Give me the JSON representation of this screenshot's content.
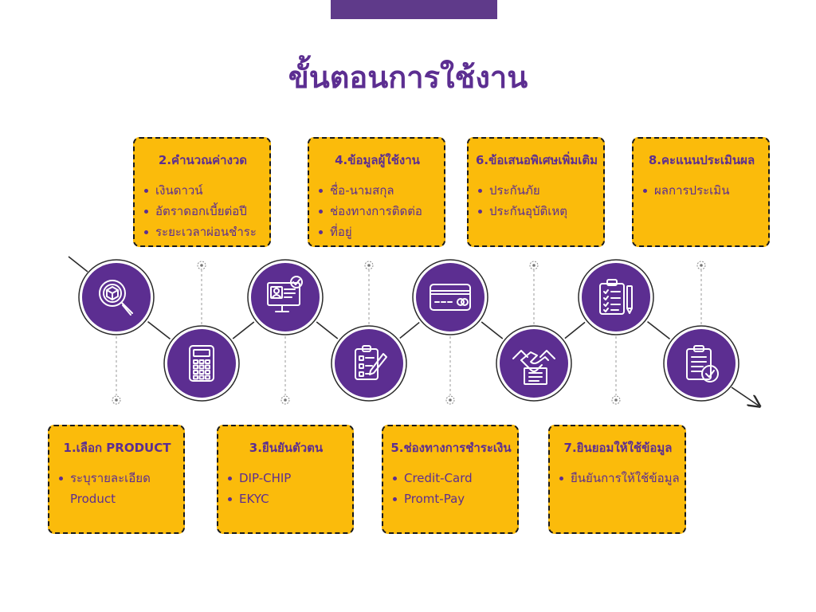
{
  "title": "ขั้นตอนการใช้งาน",
  "colors": {
    "purple": "#5c2e91",
    "yellow": "#fbbb0b",
    "line": "#2b2b2b",
    "dotted": "#9a9a9a"
  },
  "steps": [
    {
      "title": "1.เลือก PRODUCT",
      "items": [
        "ระบุรายละเอียด Product"
      ],
      "icon": "box-search-icon"
    },
    {
      "title": "2.คำนวณค่างวด",
      "items": [
        "เงินดาวน์",
        "อัตราดอกเบี้ยต่อปี",
        "ระยะเวลาผ่อนชำระ"
      ],
      "icon": "calculator-icon"
    },
    {
      "title": "3.ยืนยันตัวตน",
      "items": [
        "DIP-CHIP",
        "EKYC"
      ],
      "icon": "id-verify-monitor-icon"
    },
    {
      "title": "4.ข้อมูลผู้ใช้งาน",
      "items": [
        "ชื่อ-นามสกุล",
        "ช่องทางการติดต่อ",
        "ที่อยู่"
      ],
      "icon": "clipboard-pen-icon"
    },
    {
      "title": "5.ช่องทางการชำระเงิน",
      "items": [
        "Credit-Card",
        "Promt-Pay"
      ],
      "icon": "credit-card-icon"
    },
    {
      "title": "6.ข้อเสนอพิเศษเพิ่มเติม",
      "items": [
        "ประกันภัย",
        "ประกันอุบัติเหตุ"
      ],
      "icon": "handshake-icon"
    },
    {
      "title": "7.ยินยอมให้ใช้ข้อมูล",
      "items": [
        "ยืนยันการให้ใช้ข้อมูล"
      ],
      "icon": "checklist-pen-icon"
    },
    {
      "title": "8.คะแนนประเมินผล",
      "items": [
        "ผลการประเมิน"
      ],
      "icon": "clipboard-check-icon"
    }
  ]
}
